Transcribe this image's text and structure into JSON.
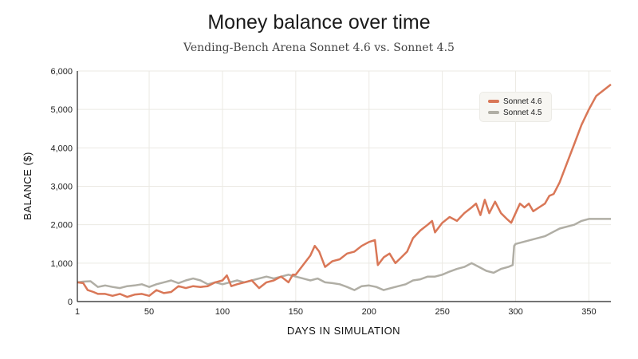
{
  "chart_data": {
    "type": "line",
    "title": "Money balance over time",
    "subtitle": "Vending-Bench Arena Sonnet 4.6 vs. Sonnet 4.5",
    "xlabel": "DAYS IN SIMULATION",
    "ylabel": "BALANCE ($)",
    "xlim": [
      1,
      365
    ],
    "ylim": [
      0,
      6000
    ],
    "xticks": [
      1,
      50,
      100,
      150,
      200,
      250,
      300,
      350
    ],
    "yticks": [
      0,
      1000,
      2000,
      3000,
      4000,
      5000,
      6000
    ],
    "ytick_labels": [
      "0",
      "1,000",
      "2,000",
      "3,000",
      "4,000",
      "5,000",
      "6,000"
    ],
    "grid": true,
    "legend_position": "top-right",
    "series": [
      {
        "name": "Sonnet 4.6",
        "color": "#d97757",
        "x": [
          1,
          5,
          8,
          12,
          15,
          20,
          25,
          30,
          35,
          40,
          45,
          50,
          55,
          60,
          65,
          70,
          75,
          80,
          85,
          90,
          95,
          100,
          103,
          106,
          110,
          115,
          120,
          125,
          130,
          135,
          140,
          145,
          148,
          150,
          155,
          160,
          163,
          166,
          170,
          175,
          180,
          185,
          190,
          195,
          200,
          204,
          206,
          210,
          214,
          218,
          222,
          226,
          230,
          235,
          240,
          243,
          245,
          250,
          255,
          260,
          265,
          270,
          273,
          276,
          279,
          282,
          286,
          290,
          294,
          297,
          300,
          303,
          306,
          309,
          312,
          316,
          320,
          323,
          326,
          330,
          335,
          340,
          345,
          350,
          355,
          360,
          365
        ],
        "y": [
          500,
          480,
          300,
          250,
          200,
          200,
          150,
          200,
          120,
          180,
          200,
          150,
          300,
          220,
          250,
          400,
          350,
          400,
          380,
          400,
          500,
          550,
          680,
          400,
          450,
          500,
          550,
          350,
          500,
          550,
          650,
          500,
          700,
          700,
          950,
          1200,
          1450,
          1300,
          900,
          1050,
          1100,
          1250,
          1300,
          1450,
          1550,
          1600,
          950,
          1150,
          1250,
          1000,
          1150,
          1300,
          1650,
          1850,
          2000,
          2100,
          1800,
          2050,
          2200,
          2100,
          2300,
          2450,
          2550,
          2250,
          2650,
          2300,
          2600,
          2300,
          2150,
          2050,
          2300,
          2550,
          2450,
          2550,
          2350,
          2450,
          2550,
          2750,
          2800,
          3100,
          3600,
          4100,
          4600,
          5000,
          5350,
          5500,
          5650
        ]
      },
      {
        "name": "Sonnet 4.5",
        "color": "#b0aea5",
        "x": [
          1,
          5,
          10,
          15,
          20,
          25,
          30,
          35,
          40,
          45,
          50,
          55,
          60,
          65,
          70,
          75,
          80,
          85,
          90,
          95,
          100,
          105,
          110,
          115,
          120,
          125,
          130,
          135,
          140,
          145,
          150,
          155,
          160,
          165,
          170,
          175,
          180,
          185,
          190,
          195,
          200,
          205,
          210,
          215,
          220,
          225,
          230,
          235,
          240,
          245,
          250,
          255,
          260,
          265,
          270,
          275,
          280,
          285,
          290,
          295,
          298,
          299,
          300,
          310,
          320,
          325,
          330,
          340,
          345,
          350,
          355,
          365
        ],
        "y": [
          500,
          520,
          530,
          380,
          420,
          380,
          350,
          400,
          420,
          450,
          380,
          450,
          500,
          550,
          480,
          550,
          600,
          550,
          450,
          500,
          450,
          500,
          550,
          500,
          550,
          600,
          650,
          600,
          650,
          700,
          650,
          600,
          550,
          600,
          500,
          480,
          450,
          380,
          300,
          400,
          420,
          380,
          300,
          350,
          400,
          450,
          550,
          580,
          650,
          650,
          700,
          780,
          850,
          900,
          1000,
          900,
          800,
          750,
          850,
          900,
          950,
          1450,
          1500,
          1600,
          1700,
          1800,
          1900,
          2000,
          2100,
          2150,
          2150,
          2150
        ]
      }
    ]
  }
}
